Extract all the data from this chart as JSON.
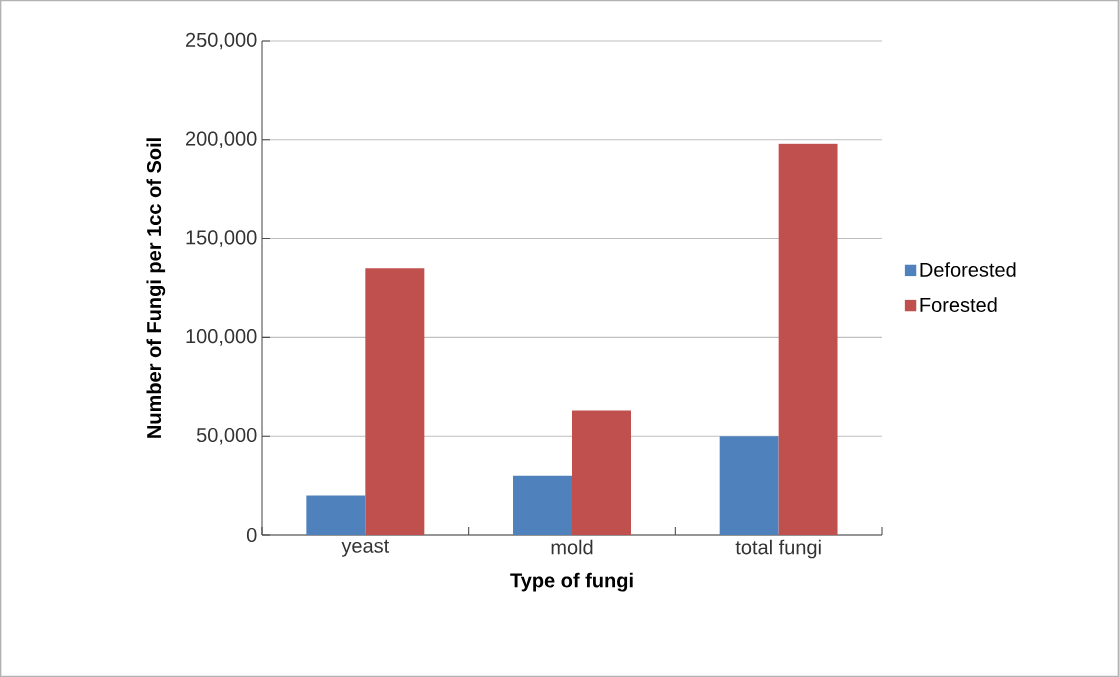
{
  "chart_data": {
    "type": "bar",
    "xlabel": "Type of fungi",
    "ylabel": "Number of Fungi per 1cc of Soil",
    "categories": [
      "yeast",
      "mold",
      "total fungi"
    ],
    "series": [
      {
        "name": "Deforested",
        "color": "#4f81bd",
        "values": [
          20000,
          30000,
          50000
        ]
      },
      {
        "name": "Forested",
        "color": "#c0504d",
        "values": [
          135000,
          63000,
          198000
        ]
      }
    ],
    "ylim": [
      0,
      250000
    ],
    "yticks": [
      {
        "value": 0,
        "label": "0"
      },
      {
        "value": 50000,
        "label": "50,000"
      },
      {
        "value": 100000,
        "label": "100,000"
      },
      {
        "value": 150000,
        "label": "150,000"
      },
      {
        "value": 200000,
        "label": "200,000"
      },
      {
        "value": 250000,
        "label": "250,000"
      }
    ],
    "grid": "y",
    "legend": "right"
  }
}
